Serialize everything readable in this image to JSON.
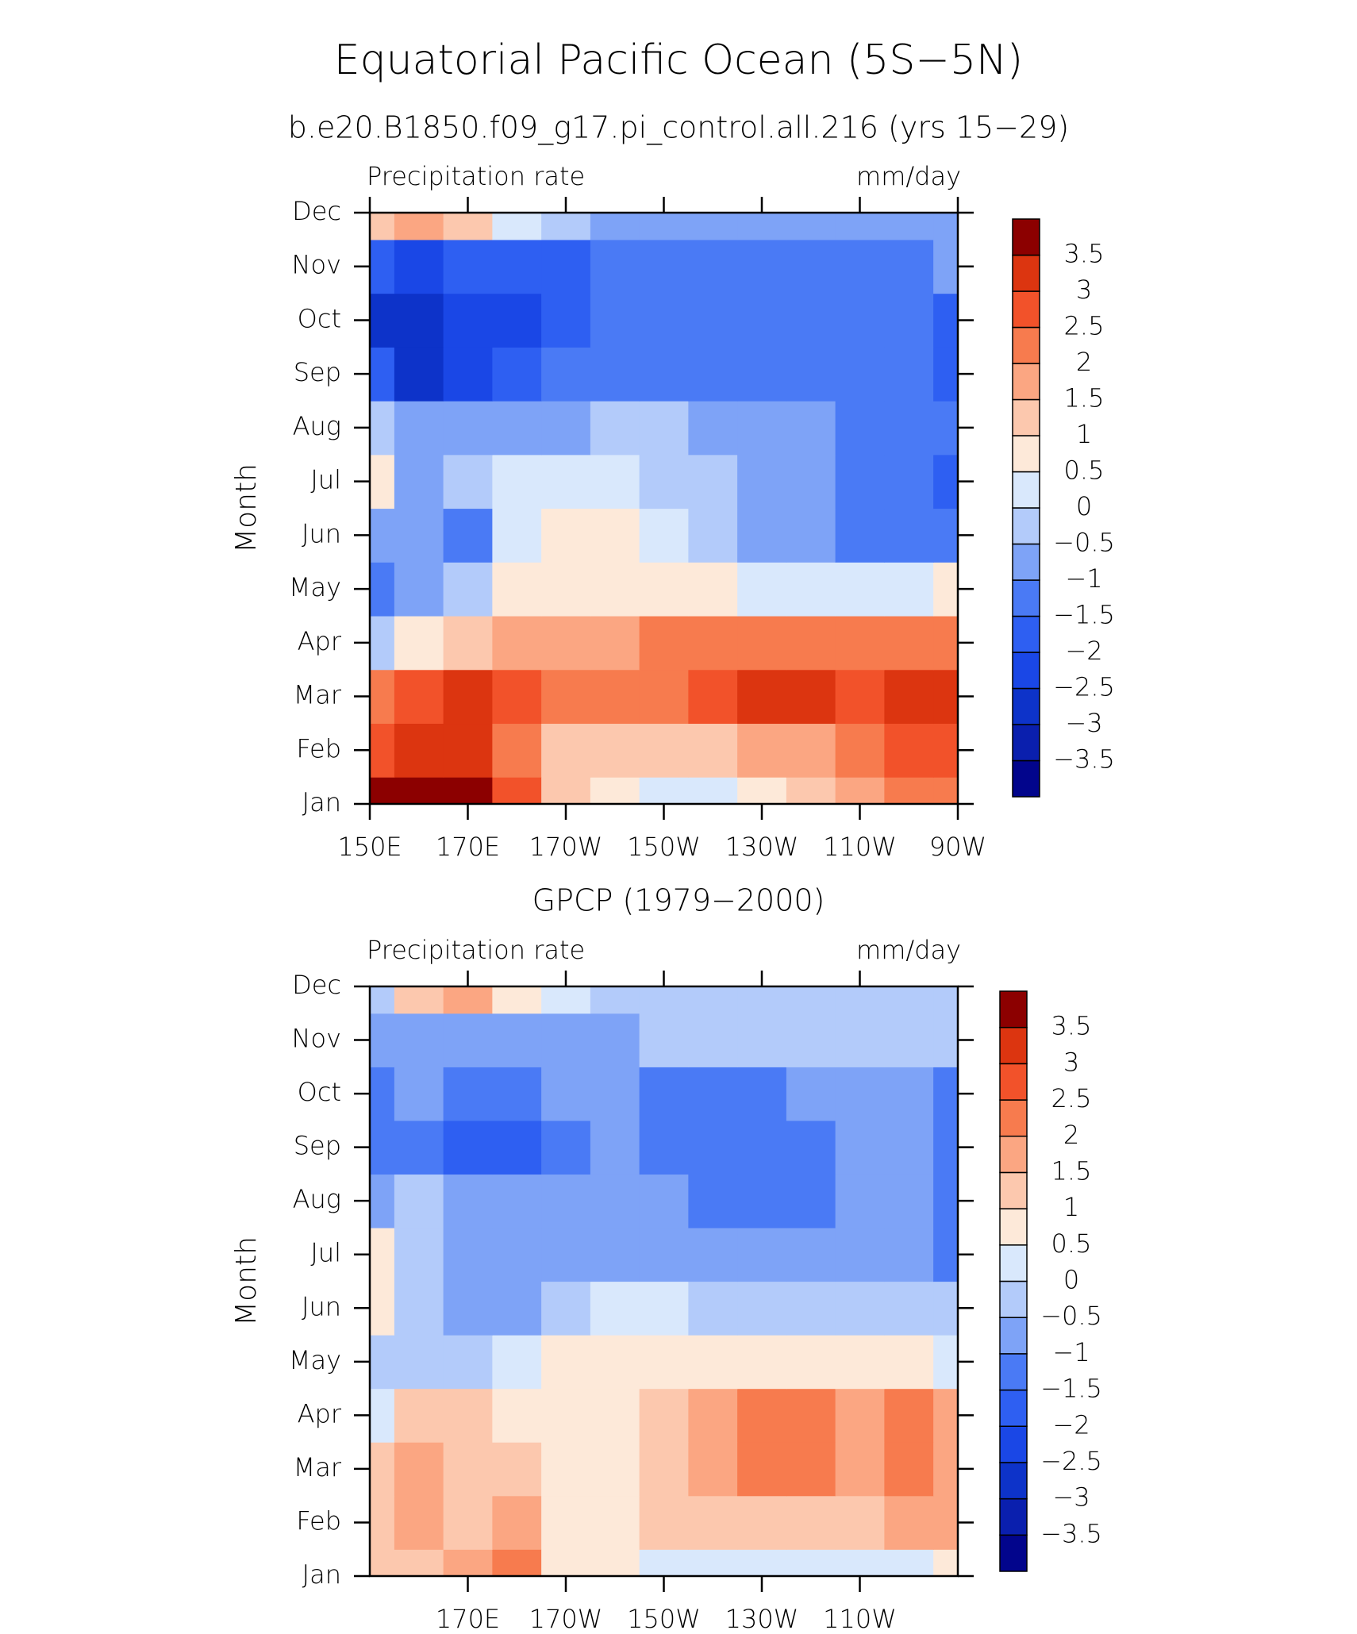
{
  "chart_data": [
    {
      "type": "heatmap",
      "title": "Equatorial Pacific Ocean (5S−5N)",
      "subtitle": "b.e20.B1850.f09_g17.pi_control.all.216 (yrs 15−29)",
      "left_label": "Precipitation rate",
      "right_label": "mm/day",
      "ylabel": "Month",
      "categories": [
        "Jan",
        "Feb",
        "Mar",
        "Apr",
        "May",
        "Jun",
        "Jul",
        "Aug",
        "Sep",
        "Oct",
        "Nov",
        "Dec"
      ],
      "x": [
        150,
        160,
        170,
        180,
        190,
        200,
        210,
        220,
        230,
        240,
        250,
        260,
        270
      ],
      "xlim": [
        150,
        270
      ],
      "xticks": [
        {
          "value": 150,
          "label": "150E"
        },
        {
          "value": 170,
          "label": "170E"
        },
        {
          "value": 190,
          "label": "170W"
        },
        {
          "value": 210,
          "label": "150W"
        },
        {
          "value": 230,
          "label": "130W"
        },
        {
          "value": 250,
          "label": "110W"
        },
        {
          "value": 270,
          "label": "90W"
        }
      ],
      "values": [
        [
          3.8,
          3.5,
          3.8,
          2.5,
          1,
          0.5,
          0,
          0,
          0.5,
          1,
          1.5,
          2,
          2
        ],
        [
          2.5,
          3,
          3,
          2,
          1,
          1,
          1,
          1,
          1.5,
          1.5,
          2,
          2.5,
          2.5
        ],
        [
          2,
          2.5,
          3,
          2.5,
          2,
          2,
          2,
          2.5,
          3,
          3,
          2.5,
          3,
          3
        ],
        [
          -0.5,
          0.5,
          1,
          1.5,
          1.5,
          1.5,
          2,
          2,
          2,
          2,
          2,
          2,
          2
        ],
        [
          -1.5,
          -1,
          -0.5,
          0.5,
          0.5,
          0.5,
          0.5,
          0.5,
          0,
          0,
          0,
          0,
          0.5
        ],
        [
          -1,
          -1,
          -1.5,
          0,
          0.5,
          0.5,
          0,
          -0.5,
          -1,
          -1,
          -1.5,
          -1.5,
          -1.5
        ],
        [
          0.5,
          -1,
          -0.5,
          0,
          0,
          0,
          -0.5,
          -0.5,
          -1,
          -1,
          -1.5,
          -1.5,
          -2
        ],
        [
          -0.5,
          -1,
          -1,
          -1,
          -1,
          -0.5,
          -0.5,
          -1,
          -1,
          -1,
          -1.5,
          -1.5,
          -1.5
        ],
        [
          -2,
          -3,
          -2.5,
          -2,
          -1.5,
          -1.5,
          -1.5,
          -1.5,
          -1.5,
          -1.5,
          -1.5,
          -1.5,
          -2
        ],
        [
          -3,
          -3,
          -2.5,
          -2.5,
          -2,
          -1.5,
          -1.5,
          -1.5,
          -1.5,
          -1.5,
          -1.5,
          -1.5,
          -2
        ],
        [
          -2,
          -2.5,
          -2,
          -2,
          -2,
          -1.5,
          -1.5,
          -1.5,
          -1.5,
          -1.5,
          -1.5,
          -1.5,
          -1
        ],
        [
          1,
          1.5,
          1,
          0,
          -0.5,
          -1,
          -1,
          -1,
          -1,
          -1,
          -1,
          -1,
          -1
        ]
      ],
      "levels": [
        {
          "value": -3.5,
          "label": "−3.5"
        },
        {
          "value": -3,
          "label": "−3"
        },
        {
          "value": -2.5,
          "label": "−2.5"
        },
        {
          "value": -2,
          "label": "−2"
        },
        {
          "value": -1.5,
          "label": "−1.5"
        },
        {
          "value": -1,
          "label": "−1"
        },
        {
          "value": -0.5,
          "label": "−0.5"
        },
        0,
        0.5,
        1,
        1.5,
        2,
        2.5,
        3,
        3.5
      ],
      "colors": [
        "#02058c",
        "#0a1fae",
        "#0d33c9",
        "#1a47e6",
        "#2e5ff2",
        "#4a7af5",
        "#7ea3f7",
        "#b3cbfa",
        "#d9e8fc",
        "#fde9d9",
        "#fcc8ae",
        "#fba682",
        "#f77b4e",
        "#f2522a",
        "#dc3510",
        "#8c0000"
      ]
    },
    {
      "type": "heatmap",
      "title": "GPCP (1979−2000)",
      "left_label": "Precipitation rate",
      "right_label": "mm/day",
      "ylabel": "Month",
      "categories": [
        "Jan",
        "Feb",
        "Mar",
        "Apr",
        "May",
        "Jun",
        "Jul",
        "Aug",
        "Sep",
        "Oct",
        "Nov",
        "Dec"
      ],
      "x": [
        150,
        160,
        170,
        180,
        190,
        200,
        210,
        220,
        230,
        240,
        250,
        260,
        270
      ],
      "xlim": [
        150,
        270
      ],
      "xticks": [
        {
          "value": 170,
          "label": "170E"
        },
        {
          "value": 190,
          "label": "170W"
        },
        {
          "value": 210,
          "label": "150W"
        },
        {
          "value": 230,
          "label": "130W"
        },
        {
          "value": 250,
          "label": "110W"
        }
      ],
      "values": [
        [
          1,
          1,
          1.5,
          2,
          0.5,
          0.5,
          0,
          0,
          0,
          0,
          0,
          0,
          0.5
        ],
        [
          1,
          1.5,
          1,
          1.5,
          0.5,
          0.5,
          1,
          1,
          1,
          1,
          1,
          1.5,
          1.5
        ],
        [
          1,
          1.5,
          1,
          1,
          0.5,
          0.5,
          1,
          1.5,
          2,
          2,
          1.5,
          2,
          1.5
        ],
        [
          0,
          1,
          1,
          0.5,
          0.5,
          0.5,
          1,
          1.5,
          2,
          2,
          1.5,
          2,
          1.5
        ],
        [
          -0.5,
          -0.5,
          -0.5,
          0,
          0.5,
          0.5,
          0.5,
          0.5,
          0.5,
          0.5,
          0.5,
          0.5,
          0
        ],
        [
          0.5,
          -0.5,
          -1,
          -1,
          -0.5,
          0,
          0,
          -0.5,
          -0.5,
          -0.5,
          -0.5,
          -0.5,
          -0.5
        ],
        [
          0.5,
          -0.5,
          -1,
          -1,
          -1,
          -1,
          -1,
          -1,
          -1,
          -1,
          -1,
          -1,
          -1.5
        ],
        [
          -1,
          -0.5,
          -1,
          -1,
          -1,
          -1,
          -1,
          -1.5,
          -1.5,
          -1.5,
          -1,
          -1,
          -1.5
        ],
        [
          -1.5,
          -1.5,
          -2,
          -2,
          -1.5,
          -1,
          -1.5,
          -1.5,
          -1.5,
          -1.5,
          -1,
          -1,
          -1.5
        ],
        [
          -1.5,
          -1,
          -1.5,
          -1.5,
          -1,
          -1,
          -1.5,
          -1.5,
          -1.5,
          -1,
          -1,
          -1,
          -1.5
        ],
        [
          -1,
          -1,
          -1,
          -1,
          -1,
          -1,
          -0.5,
          -0.5,
          -0.5,
          -0.5,
          -0.5,
          -0.5,
          -0.5
        ],
        [
          -0.5,
          1,
          1.5,
          0.5,
          0,
          -0.5,
          -0.5,
          -0.5,
          -0.5,
          -0.5,
          -0.5,
          -0.5,
          -0.5
        ]
      ],
      "levels": [
        {
          "value": -3.5,
          "label": "−3.5"
        },
        {
          "value": -3,
          "label": "−3"
        },
        {
          "value": -2.5,
          "label": "−2.5"
        },
        {
          "value": -2,
          "label": "−2"
        },
        {
          "value": -1.5,
          "label": "−1.5"
        },
        {
          "value": -1,
          "label": "−1"
        },
        {
          "value": -0.5,
          "label": "−0.5"
        },
        0,
        0.5,
        1,
        1.5,
        2,
        2.5,
        3,
        3.5
      ],
      "colors": [
        "#02058c",
        "#0a1fae",
        "#0d33c9",
        "#1a47e6",
        "#2e5ff2",
        "#4a7af5",
        "#7ea3f7",
        "#b3cbfa",
        "#d9e8fc",
        "#fde9d9",
        "#fcc8ae",
        "#fba682",
        "#f77b4e",
        "#f2522a",
        "#dc3510",
        "#8c0000"
      ]
    }
  ]
}
